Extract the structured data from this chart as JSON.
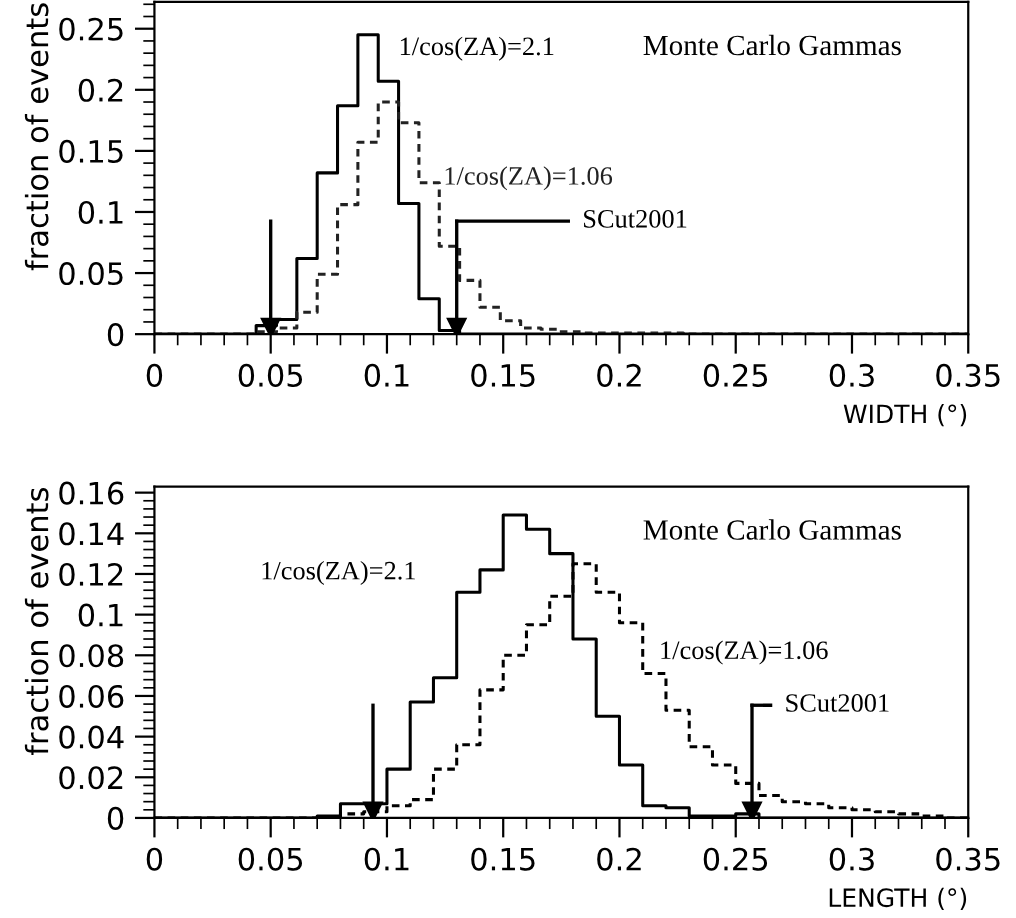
{
  "chart_data": [
    {
      "type": "histogram",
      "xlabel": "WIDTH (°)",
      "ylabel": "fraction of events",
      "bins": [
        0,
        0.00875,
        0.0175,
        0.02625,
        0.035,
        0.04375,
        0.0525,
        0.06125,
        0.07,
        0.07875,
        0.0875,
        0.09625,
        0.105,
        0.11375,
        0.1225,
        0.13125,
        0.14,
        0.14875,
        0.1575,
        0.16625,
        0.175,
        0.18375,
        0.1925,
        0.20125,
        0.21,
        0.21875,
        0.2275,
        0.23625,
        0.245,
        0.25375,
        0.2625,
        0.27125,
        0.28,
        0.28875,
        0.2975,
        0.30625,
        0.315,
        0.32375,
        0.3325,
        0.34125,
        0.35
      ],
      "series": [
        {
          "name": "1/cos(ZA)=2.1",
          "color": "#000000",
          "line_style": "solid",
          "values": [
            0,
            0,
            0,
            0,
            0,
            0.007,
            0.012,
            0.062,
            0.132,
            0.187,
            0.245,
            0.207,
            0.107,
            0.029,
            0.003,
            0,
            0,
            0,
            0,
            0,
            0,
            0,
            0,
            0,
            0,
            0,
            0,
            0,
            0,
            0,
            0,
            0,
            0,
            0,
            0,
            0,
            0,
            0,
            0,
            0
          ]
        },
        {
          "name": "1/cos(ZA)=1.06",
          "color": "#222222",
          "line_style": "dashed",
          "values": [
            0,
            0,
            0,
            0,
            0,
            0.002,
            0.005,
            0.018,
            0.049,
            0.106,
            0.157,
            0.19,
            0.173,
            0.124,
            0.072,
            0.044,
            0.022,
            0.011,
            0.005,
            0.004,
            0.002,
            0.001,
            0.001,
            0.001,
            0.001,
            0.001,
            0,
            0,
            0,
            0,
            0,
            0,
            0,
            0,
            0,
            0,
            0,
            0,
            0,
            0
          ]
        }
      ],
      "xlim": [
        0,
        0.35
      ],
      "ylim": [
        0,
        0.272
      ],
      "xticks": [
        0,
        0.05,
        0.1,
        0.15,
        0.2,
        0.25,
        0.3,
        0.35
      ],
      "yticks": [
        0,
        0.05,
        0.1,
        0.15,
        0.2,
        0.25
      ],
      "ref_lines": [
        {
          "axis": "x",
          "value": 0.05
        },
        {
          "axis": "x",
          "value": 0.13,
          "label": "SCut2001"
        }
      ],
      "annotations": [
        "Monte Carlo Gammas"
      ],
      "grid": false,
      "legend": false
    },
    {
      "type": "histogram",
      "xlabel": "LENGTH (°)",
      "ylabel": "fraction of events",
      "bins": [
        0,
        0.01,
        0.02,
        0.03,
        0.04,
        0.05,
        0.06,
        0.07,
        0.08,
        0.09,
        0.1,
        0.11,
        0.12,
        0.13,
        0.14,
        0.15,
        0.16,
        0.17,
        0.18,
        0.19,
        0.2,
        0.21,
        0.22,
        0.23,
        0.24,
        0.25,
        0.26,
        0.27,
        0.28,
        0.29,
        0.3,
        0.31,
        0.32,
        0.33,
        0.34,
        0.35
      ],
      "series": [
        {
          "name": "1/cos(ZA)=2.1",
          "color": "#000000",
          "line_style": "solid",
          "values": [
            0,
            0,
            0,
            0,
            0,
            0,
            0,
            0.001,
            0.007,
            0.007,
            0.024,
            0.057,
            0.069,
            0.111,
            0.122,
            0.149,
            0.142,
            0.13,
            0.088,
            0.05,
            0.026,
            0.006,
            0.005,
            0.001,
            0.001,
            0.002,
            0,
            0,
            0,
            0,
            0,
            0,
            0,
            0,
            0
          ]
        },
        {
          "name": "1/cos(ZA)=1.06",
          "color": "#000000",
          "line_style": "dashed",
          "values": [
            0,
            0,
            0,
            0,
            0,
            0,
            0,
            0,
            0.002,
            0.003,
            0.006,
            0.009,
            0.024,
            0.036,
            0.063,
            0.08,
            0.095,
            0.109,
            0.125,
            0.111,
            0.096,
            0.071,
            0.053,
            0.035,
            0.026,
            0.017,
            0.011,
            0.008,
            0.007,
            0.005,
            0.004,
            0.003,
            0.002,
            0.001,
            0
          ]
        }
      ],
      "xlim": [
        0,
        0.35
      ],
      "ylim": [
        0,
        0.163
      ],
      "xticks": [
        0,
        0.05,
        0.1,
        0.15,
        0.2,
        0.25,
        0.3,
        0.35
      ],
      "yticks": [
        0,
        0.02,
        0.04,
        0.06,
        0.08,
        0.1,
        0.12,
        0.14,
        0.16
      ],
      "ref_lines": [
        {
          "axis": "x",
          "value": 0.094
        },
        {
          "axis": "x",
          "value": 0.257,
          "label": "SCut2001"
        }
      ],
      "annotations": [
        "Monte Carlo Gammas"
      ],
      "grid": false,
      "legend": false
    }
  ]
}
